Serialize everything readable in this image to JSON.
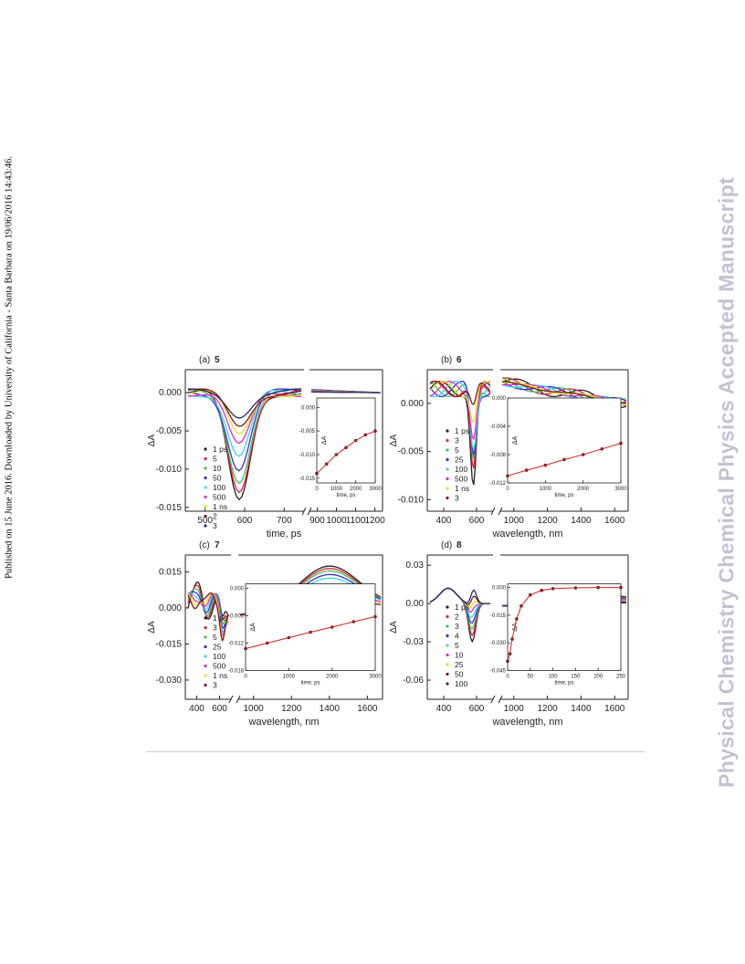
{
  "side_note": "Published on 15 June 2016. Downloaded by University of California - Santa Barbara on 19/06/2016 14:43:46.",
  "watermark": "Physical Chemistry Chemical Physics Accepted Manuscript",
  "colors": {
    "traces": [
      "#222222",
      "#e81e3c",
      "#3cc84a",
      "#3a2ae0",
      "#37d8e8",
      "#e02cc8",
      "#e6e21a",
      "#7a1a1a",
      "#28286a",
      "#28a0a0",
      "#ff8c1a",
      "#8a8a8a",
      "#b8e62a"
    ]
  },
  "chart_data": [
    {
      "type": "line",
      "panel_label": "(a)",
      "compound": "5",
      "xlabel": "time, ps",
      "ylabel": "ΔA",
      "x_ticks_left": [
        "500",
        "600",
        "700"
      ],
      "x_ticks_right": [
        "900",
        "1000",
        "1100",
        "1200"
      ],
      "y_ticks": [
        "0.000",
        "-0.005",
        "-0.010",
        "-0.015"
      ],
      "ylim": [
        -0.0155,
        0.003
      ],
      "legend": [
        "1 ps",
        "5",
        "10",
        "50",
        "100",
        "500",
        "1 ns",
        "2",
        "3"
      ],
      "bleach_min": -0.0142,
      "inset": {
        "xlabel": "time, ps",
        "ylabel": "ΔA",
        "x_ticks": [
          "0",
          "1000",
          "2000",
          "3000"
        ],
        "y_ticks": [
          "0.000",
          "-0.005",
          "-0.010",
          "-0.015"
        ],
        "ylim": [
          -0.016,
          0.002
        ],
        "x": [
          0,
          500,
          1000,
          1500,
          2000,
          2500,
          3000
        ],
        "y": [
          -0.014,
          -0.012,
          -0.01,
          -0.0085,
          -0.007,
          -0.0058,
          -0.005
        ]
      }
    },
    {
      "type": "line",
      "panel_label": "(b)",
      "compound": "6",
      "xlabel": "wavelength, nm",
      "ylabel": "ΔA",
      "x_ticks_left": [
        "400",
        "600"
      ],
      "x_ticks_right": [
        "1000",
        "1200",
        "1400",
        "1600"
      ],
      "y_ticks": [
        "0.000",
        "-0.005",
        "-0.010"
      ],
      "ylim": [
        -0.0112,
        0.0035
      ],
      "legend": [
        "1 ps",
        "3",
        "5",
        "25",
        "100",
        "500",
        "1 ns",
        "3"
      ],
      "bleach_min": -0.0102,
      "inset": {
        "xlabel": "time, ps",
        "ylabel": "ΔA",
        "x_ticks": [
          "0",
          "1000",
          "2000",
          "3000"
        ],
        "y_ticks": [
          "0.000",
          "-0.004",
          "-0.008",
          "-0.012"
        ],
        "ylim": [
          -0.012,
          0.0
        ],
        "x": [
          0,
          500,
          1000,
          1500,
          2000,
          2500,
          3000
        ],
        "y": [
          -0.011,
          -0.0102,
          -0.0095,
          -0.0087,
          -0.008,
          -0.0072,
          -0.0064
        ]
      }
    },
    {
      "type": "line",
      "panel_label": "(c)",
      "compound": "7",
      "xlabel": "wavelength, nm",
      "ylabel": "ΔA",
      "x_ticks_left": [
        "400",
        "600"
      ],
      "x_ticks_right": [
        "1000",
        "1200",
        "1400",
        "1600"
      ],
      "y_ticks": [
        "0.015",
        "0.000",
        "-0.015",
        "-0.030"
      ],
      "ylim": [
        -0.038,
        0.022
      ],
      "legend": [
        "1 ps",
        "3",
        "5",
        "25",
        "100",
        "500",
        "1 ns",
        "3"
      ],
      "nir_peak_x": 1300,
      "nir_peak_values": [
        0.0185,
        0.0175,
        0.0165,
        0.015,
        0.0135,
        0.0105,
        0.0085,
        0.0055
      ],
      "inset": {
        "xlabel": "time, ps",
        "ylabel": "ΔA",
        "x_ticks": [
          "0",
          "1000",
          "2000",
          "3000"
        ],
        "y_ticks": [
          "0.000",
          "-0.006",
          "-0.012",
          "-0.018"
        ],
        "ylim": [
          -0.018,
          0.001
        ],
        "x": [
          0,
          500,
          1000,
          1500,
          2000,
          2500,
          3000
        ],
        "y": [
          -0.0132,
          -0.012,
          -0.0108,
          -0.0096,
          -0.0085,
          -0.0073,
          -0.0062
        ]
      }
    },
    {
      "type": "line",
      "panel_label": "(d)",
      "compound": "8",
      "xlabel": "wavelength, nm",
      "ylabel": "ΔA",
      "x_ticks_left": [
        "400",
        "600"
      ],
      "x_ticks_right": [
        "1000",
        "1200",
        "1400",
        "1600"
      ],
      "y_ticks": [
        "0.03",
        "0.00",
        "-0.03",
        "-0.06"
      ],
      "ylim": [
        -0.075,
        0.038
      ],
      "legend": [
        "1 ps",
        "2",
        "3",
        "4",
        "5",
        "10",
        "25",
        "50",
        "100"
      ],
      "inset": {
        "xlabel": "time, ps",
        "ylabel": "ΔA",
        "x_ticks": [
          "0",
          "50",
          "100",
          "150",
          "200",
          "250"
        ],
        "y_ticks": [
          "0.000",
          "-0.015",
          "-0.030",
          "-0.045"
        ],
        "ylim": [
          -0.045,
          0.002
        ],
        "x": [
          0,
          5,
          10,
          20,
          30,
          50,
          75,
          100,
          150,
          200,
          250
        ],
        "y": [
          -0.04,
          -0.036,
          -0.028,
          -0.017,
          -0.01,
          -0.004,
          -0.0015,
          -0.0006,
          -0.0002,
          0.0,
          0.0
        ]
      }
    }
  ]
}
